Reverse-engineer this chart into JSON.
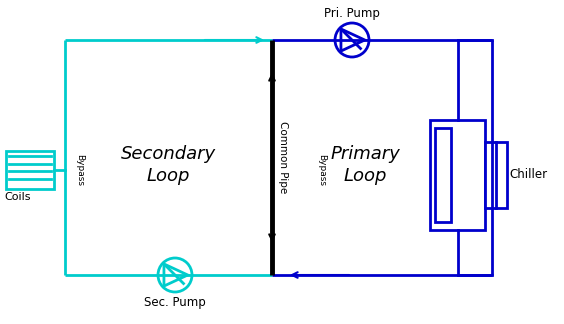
{
  "cyan_color": "#00CCCC",
  "blue_color": "#0000CC",
  "black_color": "#000000",
  "bg_color": "#FFFFFF",
  "secondary_loop_label": "Secondary\nLoop",
  "primary_loop_label": "Primary\nLoop",
  "common_pipe_label": "Common Pipe",
  "coils_label": "Coils",
  "bypass_sec_label": "Bypass",
  "bypass_pri_label": "Bypass",
  "chiller_label": "Chiller",
  "sec_pump_label": "Sec. Pump",
  "pri_pump_label": "Pri. Pump",
  "figsize": [
    5.64,
    3.24
  ],
  "dpi": 100
}
